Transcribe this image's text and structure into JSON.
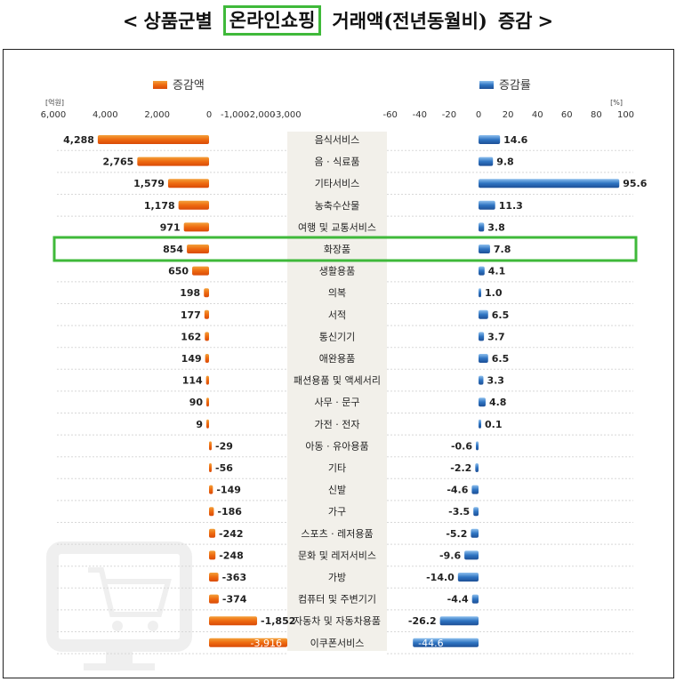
{
  "title": {
    "prefix": "<",
    "part1": "상품군별",
    "highlight": "온라인쇼핑",
    "part2": "거래액(전년동월비)",
    "part3": "증감",
    "suffix": ">"
  },
  "colors": {
    "amount_bar": "#ee6a10",
    "rate_bar": "#2f74c2",
    "highlight_box": "#3fb93a",
    "center_band": "#f2f0ea"
  },
  "chart_data": {
    "type": "bar",
    "layout": "butterfly",
    "categories": [
      "음식서비스",
      "음 · 식료품",
      "기타서비스",
      "농축수산물",
      "여행 및 교통서비스",
      "화장품",
      "생활용품",
      "의복",
      "서적",
      "통신기기",
      "애완용품",
      "패션용품 및 액세서리",
      "사무 · 문구",
      "가전 · 전자",
      "아동 · 유아용품",
      "기타",
      "신발",
      "가구",
      "스포츠 · 레저용품",
      "문화 및 레저서비스",
      "가방",
      "컴퓨터 및 주변기기",
      "자동차 및 자동차용품",
      "이쿠폰서비스"
    ],
    "highlighted_category": "화장품",
    "series": [
      {
        "name": "증감액",
        "unit": "[억원]",
        "values": [
          4288,
          2765,
          1579,
          1178,
          971,
          854,
          650,
          198,
          177,
          162,
          149,
          114,
          90,
          9,
          -29,
          -56,
          -149,
          -186,
          -242,
          -248,
          -363,
          -374,
          -1852,
          -3916
        ],
        "labels": [
          "4,288",
          "2,765",
          "1,579",
          "1,178",
          "971",
          "854",
          "650",
          "198",
          "177",
          "162",
          "149",
          "114",
          "90",
          "9",
          "-29",
          "-56",
          "-149",
          "-186",
          "-242",
          "-248",
          "-363",
          "-374",
          "-1,852",
          "-3,916"
        ],
        "axis_ticks": [
          6000,
          4000,
          2000,
          0,
          -1000,
          -2000,
          -3000
        ],
        "axis_tick_labels": [
          "6,000",
          "4,000",
          "2,000",
          "0",
          "-1,000",
          "-2,000",
          "-3,000"
        ]
      },
      {
        "name": "증감률",
        "unit": "[%]",
        "values": [
          14.6,
          9.8,
          95.6,
          11.3,
          3.8,
          7.8,
          4.1,
          1.0,
          6.5,
          3.7,
          6.5,
          3.3,
          4.8,
          0.1,
          -0.6,
          -2.2,
          -4.6,
          -3.5,
          -5.2,
          -9.6,
          -14.0,
          -4.4,
          -26.2,
          -44.6
        ],
        "labels": [
          "14.6",
          "9.8",
          "95.6",
          "11.3",
          "3.8",
          "7.8",
          "4.1",
          "1.0",
          "6.5",
          "3.7",
          "6.5",
          "3.3",
          "4.8",
          "0.1",
          "-0.6",
          "-2.2",
          "-4.6",
          "-3.5",
          "-5.2",
          "-9.6",
          "-14.0",
          "-4.4",
          "-26.2",
          "-44.6"
        ],
        "axis_ticks": [
          -60,
          -40,
          -20,
          0,
          20,
          40,
          60,
          80,
          100
        ],
        "axis_tick_labels": [
          "-60",
          "-40",
          "-20",
          "0",
          "20",
          "40",
          "60",
          "80",
          "100"
        ]
      }
    ]
  }
}
